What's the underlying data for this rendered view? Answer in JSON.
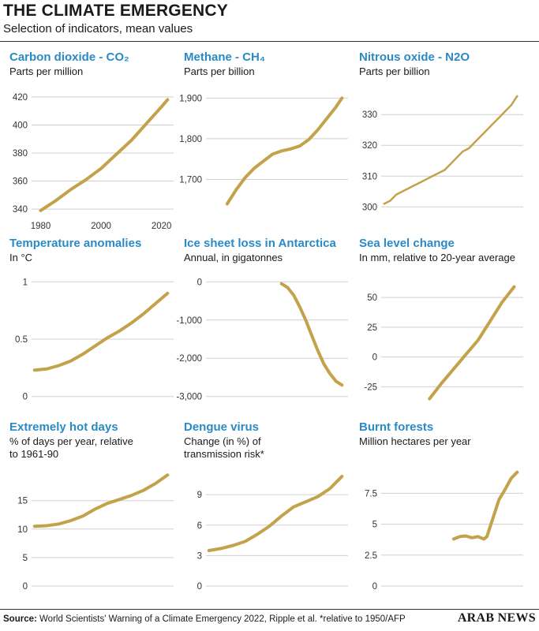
{
  "header": {
    "title": "THE CLIMATE EMERGENCY",
    "subtitle": "Selection of indicators, mean values"
  },
  "footer": {
    "source_label": "Source:",
    "source_text": " World Scientists' Warning of a Climate Emergency 2022, Ripple et al. *relative to 1950/AFP",
    "brand": "ARAB NEWS"
  },
  "colors": {
    "line": "#c2a24a",
    "title": "#2a8ac6",
    "grid": "#cfcfcf"
  },
  "chart_data": [
    {
      "id": "co2",
      "type": "line",
      "title": "Carbon dioxide - CO₂",
      "subtitle": "Parts per million",
      "ylim": [
        335,
        425
      ],
      "yticks": [
        340,
        360,
        380,
        400,
        420
      ],
      "xlim": [
        1977,
        2024
      ],
      "xticks": [
        1980,
        2000,
        2020
      ],
      "x": [
        1980,
        1985,
        1990,
        1995,
        2000,
        2005,
        2010,
        2015,
        2020,
        2022
      ],
      "values": [
        339,
        346,
        354,
        361,
        369,
        379,
        389,
        401,
        413,
        418
      ]
    },
    {
      "id": "ch4",
      "type": "line",
      "title": "Methane - CH₄",
      "subtitle": "Parts per billion",
      "ylim": [
        1610,
        1920
      ],
      "yticks": [
        1700,
        1800,
        1900
      ],
      "ytick_labels": [
        "1,700",
        "1,800",
        "1,900"
      ],
      "xlim": [
        1977,
        2024
      ],
      "xticks": [],
      "x": [
        1984,
        1987,
        1990,
        1993,
        1996,
        1999,
        2002,
        2005,
        2008,
        2011,
        2014,
        2017,
        2020,
        2022
      ],
      "values": [
        1640,
        1675,
        1705,
        1728,
        1745,
        1762,
        1770,
        1775,
        1782,
        1798,
        1822,
        1850,
        1878,
        1900
      ]
    },
    {
      "id": "n2o",
      "type": "line",
      "title": "Nitrous oxide - N2O",
      "subtitle": "Parts per billion",
      "ylim": [
        297,
        338
      ],
      "yticks": [
        300,
        310,
        320,
        330
      ],
      "xlim": [
        1977,
        2024
      ],
      "xticks": [],
      "x": [
        1978,
        1980,
        1982,
        1984,
        1986,
        1988,
        1990,
        1992,
        1994,
        1996,
        1998,
        2000,
        2002,
        2004,
        2006,
        2008,
        2010,
        2012,
        2014,
        2016,
        2018,
        2020,
        2022
      ],
      "values": [
        301,
        302,
        304,
        305,
        306,
        307,
        308,
        309,
        310,
        311,
        312,
        314,
        316,
        318,
        319,
        321,
        323,
        325,
        327,
        329,
        331,
        333,
        336
      ]
    },
    {
      "id": "temp",
      "type": "line",
      "title": "Temperature anomalies",
      "subtitle": "In °C",
      "ylim": [
        -0.05,
        1.05
      ],
      "yticks": [
        0,
        0.5,
        1
      ],
      "xlim": [
        1977,
        2024
      ],
      "xticks": [],
      "x": [
        1978,
        1982,
        1986,
        1990,
        1994,
        1998,
        2002,
        2006,
        2010,
        2014,
        2018,
        2022
      ],
      "values": [
        0.23,
        0.24,
        0.27,
        0.31,
        0.37,
        0.44,
        0.51,
        0.57,
        0.64,
        0.72,
        0.81,
        0.9
      ]
    },
    {
      "id": "ice",
      "type": "line",
      "title": "Ice sheet loss in Antarctica",
      "subtitle": "Annual, in gigatonnes",
      "ylim": [
        -3150,
        150
      ],
      "yticks": [
        0,
        -1000,
        -2000,
        -3000
      ],
      "ytick_labels": [
        "0",
        "-1,000",
        "-2,000",
        "-3,000"
      ],
      "xlim": [
        1977,
        2024
      ],
      "xticks": [],
      "x": [
        2002,
        2004,
        2006,
        2008,
        2010,
        2012,
        2014,
        2016,
        2018,
        2020,
        2022
      ],
      "values": [
        -50,
        -150,
        -350,
        -650,
        -1000,
        -1400,
        -1800,
        -2150,
        -2400,
        -2600,
        -2700
      ]
    },
    {
      "id": "sea",
      "type": "line",
      "title": "Sea level change",
      "subtitle": "In mm, relative  to 20-year average",
      "ylim": [
        -38,
        68
      ],
      "yticks": [
        50,
        25,
        0,
        -25
      ],
      "xlim": [
        1977,
        2024
      ],
      "xticks": [],
      "x": [
        1993,
        1997,
        2001,
        2005,
        2009,
        2013,
        2017,
        2021
      ],
      "values": [
        -35,
        -22,
        -10,
        2,
        14,
        30,
        46,
        59
      ]
    },
    {
      "id": "hot",
      "type": "line",
      "title": "Extremely hot days",
      "subtitle": "% of days per year, relative\nto 1961-90",
      "ylim": [
        0,
        20.5
      ],
      "yticks": [
        0,
        5,
        10,
        15
      ],
      "xlim": [
        1977,
        2024
      ],
      "xticks": [],
      "x": [
        1978,
        1982,
        1986,
        1990,
        1994,
        1998,
        2002,
        2006,
        2010,
        2014,
        2018,
        2022
      ],
      "values": [
        10.5,
        10.6,
        10.9,
        11.5,
        12.3,
        13.5,
        14.5,
        15.2,
        15.9,
        16.8,
        18.0,
        19.5
      ]
    },
    {
      "id": "dengue",
      "type": "line",
      "title": "Dengue virus",
      "subtitle": "Change (in %) of\ntransmission risk*",
      "ylim": [
        0,
        11.5
      ],
      "yticks": [
        0,
        3,
        6,
        9
      ],
      "xlim": [
        1977,
        2024
      ],
      "xticks": [],
      "x": [
        1978,
        1982,
        1986,
        1990,
        1994,
        1998,
        2002,
        2006,
        2010,
        2014,
        2018,
        2022
      ],
      "values": [
        3.5,
        3.7,
        4.0,
        4.4,
        5.1,
        5.9,
        6.9,
        7.8,
        8.3,
        8.8,
        9.6,
        10.8
      ]
    },
    {
      "id": "burnt",
      "type": "line",
      "title": "Burnt forests",
      "subtitle": "Million hectares per year",
      "ylim": [
        0,
        10.2
      ],
      "yticks": [
        0,
        2.5,
        5,
        7.5
      ],
      "xlim": [
        1977,
        2024
      ],
      "xticks": [],
      "x": [
        2001,
        2003,
        2005,
        2007,
        2009,
        2011,
        2012,
        2014,
        2016,
        2018,
        2020,
        2022
      ],
      "values": [
        3.8,
        4.0,
        4.05,
        3.9,
        4.0,
        3.8,
        4.0,
        5.5,
        7.0,
        7.8,
        8.7,
        9.2
      ]
    }
  ]
}
